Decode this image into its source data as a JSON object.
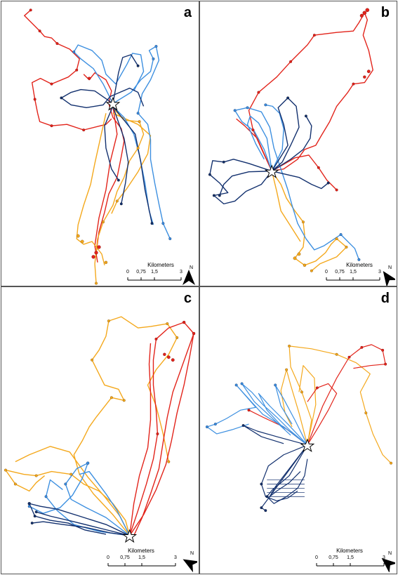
{
  "colors": {
    "red": "#e2231a",
    "orange": "#f4a81c",
    "light_blue": "#3c8fe0",
    "dark_blue": "#12306e",
    "star": "#ffffff"
  },
  "panels": [
    {
      "letter": "a"
    },
    {
      "letter": "b"
    },
    {
      "letter": "c"
    },
    {
      "letter": "d"
    }
  ],
  "scale_bar": {
    "title": "Kilometers",
    "ticks": [
      "0",
      "0,75",
      "1,5",
      "3"
    ]
  },
  "north_arrow": {
    "label": "N",
    "icon": "north-arrow-icon"
  }
}
